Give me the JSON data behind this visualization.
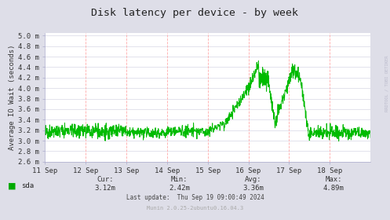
{
  "title": "Disk latency per device - by week",
  "ylabel": "Average IO Wait (seconds)",
  "bg_color": "#dedee8",
  "plot_bg_color": "#ffffff",
  "grid_color_v": "#ffaaaa",
  "grid_color_h": "#ccccdd",
  "line_color": "#00bb00",
  "ytick_labels": [
    "2.6 m",
    "2.8 m",
    "3.0 m",
    "3.2 m",
    "3.4 m",
    "3.6 m",
    "3.8 m",
    "4.0 m",
    "4.2 m",
    "4.4 m",
    "4.6 m",
    "4.8 m",
    "5.0 m"
  ],
  "ytick_values": [
    2.6,
    2.8,
    3.0,
    3.2,
    3.4,
    3.6,
    3.8,
    4.0,
    4.2,
    4.4,
    4.6,
    4.8,
    5.0
  ],
  "xtick_labels": [
    "11 Sep",
    "12 Sep",
    "13 Sep",
    "14 Sep",
    "15 Sep",
    "16 Sep",
    "17 Sep",
    "18 Sep"
  ],
  "ylim": [
    2.6,
    5.05
  ],
  "xlim": [
    0,
    8
  ],
  "legend_label": "sda",
  "legend_color": "#00aa00",
  "cur": "3.12m",
  "min_val": "2.42m",
  "avg": "3.36m",
  "max_val": "4.89m",
  "footer_line1": "Last update:  Thu Sep 19 09:00:49 2024",
  "munin_text": "Munin 2.0.25-2ubuntu0.16.04.3",
  "rrdtool_text": "RRDTOOL / TOBI OETIKER"
}
